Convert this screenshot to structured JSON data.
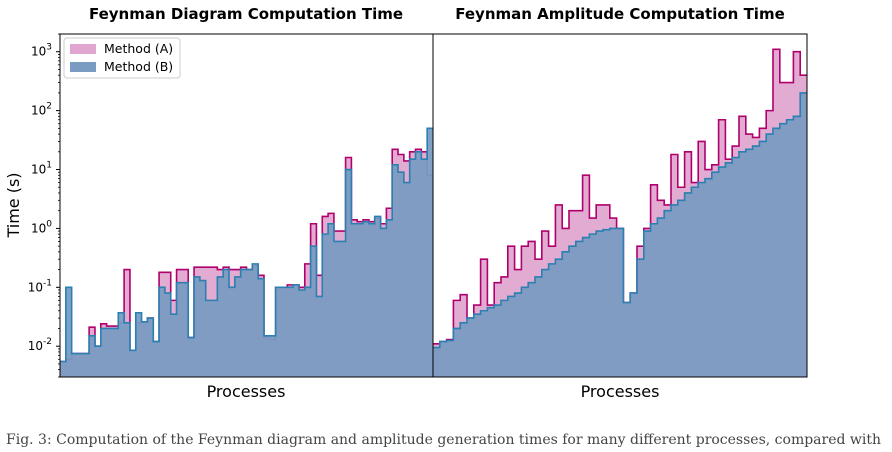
{
  "caption": "Fig. 3: Computation of the Feynman diagram and amplitude generation times for many different processes, compared with",
  "chart_data": [
    {
      "type": "step-area",
      "title": "Feynman Diagram Computation Time",
      "xlabel": "Processes",
      "ylabel": "Time (s)",
      "yscale": "log",
      "ylim": [
        0.003,
        2000
      ],
      "yticks": [
        {
          "value": 0.01,
          "label": "10^-2"
        },
        {
          "value": 0.1,
          "label": "10^-1"
        },
        {
          "value": 1,
          "label": "10^0"
        },
        {
          "value": 10,
          "label": "10^1"
        },
        {
          "value": 100,
          "label": "10^2"
        },
        {
          "value": 1000,
          "label": "10^3"
        }
      ],
      "legend": "top-left",
      "series": [
        {
          "name": "Method (A)",
          "fill": "#e0a6cf",
          "line": "#b0006e",
          "values": [
            0.0055,
            0.006,
            0.0075,
            0.0075,
            0.0075,
            0.021,
            0.01,
            0.024,
            0.022,
            0.022,
            0.025,
            0.2,
            0.0085,
            0.025,
            0.026,
            0.03,
            0.012,
            0.18,
            0.18,
            0.06,
            0.2,
            0.2,
            0.014,
            0.22,
            0.22,
            0.22,
            0.22,
            0.2,
            0.22,
            0.2,
            0.2,
            0.22,
            0.2,
            0.23,
            0.16,
            0.014,
            0.013,
            0.1,
            0.1,
            0.11,
            0.11,
            0.1,
            0.25,
            1.2,
            0.16,
            1.6,
            1.8,
            0.9,
            0.9,
            16,
            1.4,
            1.3,
            1.4,
            1.3,
            1.5,
            1.2,
            2.2,
            22,
            18,
            14,
            20,
            22,
            20,
            8
          ]
        },
        {
          "name": "Method (B)",
          "fill": "#7a9bc2",
          "line": "#2a80b0",
          "values": [
            0.0055,
            0.1,
            0.0075,
            0.0075,
            0.0075,
            0.015,
            0.01,
            0.02,
            0.02,
            0.02,
            0.037,
            0.025,
            0.0085,
            0.037,
            0.026,
            0.03,
            0.012,
            0.1,
            0.08,
            0.035,
            0.12,
            0.12,
            0.014,
            0.15,
            0.13,
            0.06,
            0.06,
            0.15,
            0.2,
            0.1,
            0.15,
            0.2,
            0.2,
            0.25,
            0.14,
            0.015,
            0.015,
            0.1,
            0.1,
            0.1,
            0.11,
            0.09,
            0.1,
            0.5,
            0.07,
            0.8,
            1.2,
            0.6,
            0.6,
            10,
            1.2,
            1.2,
            1.3,
            1.2,
            1.6,
            1.0,
            1.4,
            12,
            9,
            6,
            15,
            20,
            15,
            50
          ]
        }
      ]
    },
    {
      "type": "step-area",
      "title": "Feynman Amplitude Computation Time",
      "xlabel": "Processes",
      "yscale": "log",
      "ylim": [
        0.003,
        2000
      ],
      "series": [
        {
          "name": "Method (A)",
          "fill": "#e0a6cf",
          "line": "#b0006e",
          "values": [
            0.011,
            0.012,
            0.013,
            0.06,
            0.075,
            0.03,
            0.05,
            0.3,
            0.05,
            0.12,
            0.15,
            0.5,
            0.2,
            0.5,
            0.6,
            0.3,
            0.9,
            0.5,
            2.5,
            1.0,
            2.0,
            2.0,
            8.0,
            1.5,
            2.5,
            2.5,
            1.5,
            1.0,
            0.055,
            0.08,
            0.5,
            1.0,
            5.5,
            3.0,
            2.5,
            18,
            5.0,
            20,
            6.0,
            30,
            10,
            12,
            70,
            15,
            25,
            80,
            40,
            35,
            50,
            100,
            1100,
            300,
            300,
            1000,
            400
          ]
        },
        {
          "name": "Method (B)",
          "fill": "#7a9bc2",
          "line": "#2a80b0",
          "values": [
            0.0095,
            0.012,
            0.0125,
            0.02,
            0.025,
            0.03,
            0.035,
            0.04,
            0.045,
            0.05,
            0.06,
            0.07,
            0.08,
            0.1,
            0.12,
            0.15,
            0.2,
            0.25,
            0.3,
            0.4,
            0.5,
            0.6,
            0.7,
            0.8,
            0.9,
            0.95,
            1.0,
            1.0,
            0.055,
            0.08,
            0.3,
            0.9,
            1.2,
            1.5,
            2.0,
            2.5,
            3.0,
            4.0,
            5.0,
            6.0,
            7.0,
            9.0,
            11,
            13,
            16,
            20,
            22,
            25,
            30,
            40,
            50,
            60,
            70,
            80,
            200
          ]
        }
      ]
    }
  ]
}
